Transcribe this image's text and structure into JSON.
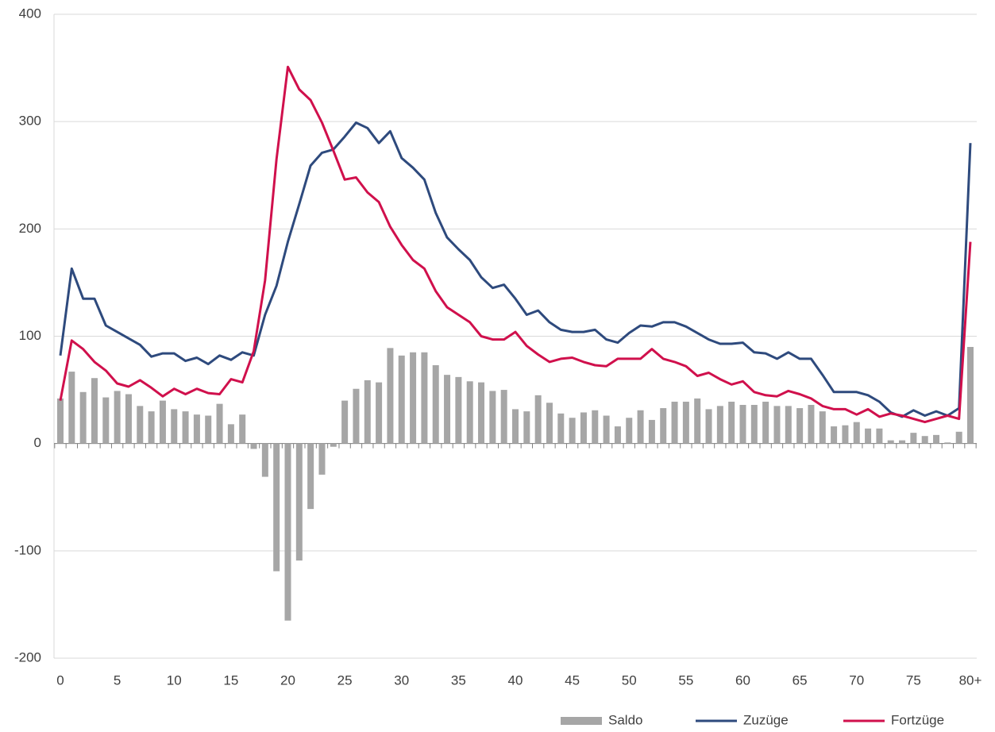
{
  "chart_data": {
    "type": "bar",
    "categories": [
      "0",
      null,
      null,
      null,
      null,
      "5",
      null,
      null,
      null,
      null,
      "10",
      null,
      null,
      null,
      null,
      "15",
      null,
      null,
      null,
      null,
      "20",
      null,
      null,
      null,
      null,
      "25",
      null,
      null,
      null,
      null,
      "30",
      null,
      null,
      null,
      null,
      "35",
      null,
      null,
      null,
      null,
      "40",
      null,
      null,
      null,
      null,
      "45",
      null,
      null,
      null,
      null,
      "50",
      null,
      null,
      null,
      null,
      "55",
      null,
      null,
      null,
      null,
      "60",
      null,
      null,
      null,
      null,
      "65",
      null,
      null,
      null,
      null,
      "70",
      null,
      null,
      null,
      null,
      "75",
      null,
      null,
      null,
      null,
      "80+"
    ],
    "series": [
      {
        "name": "Saldo",
        "type": "bar",
        "color": "#a6a6a6",
        "values": [
          42,
          67,
          48,
          61,
          43,
          49,
          46,
          35,
          30,
          40,
          32,
          30,
          27,
          26,
          37,
          18,
          27,
          -5,
          -31,
          -119,
          -165,
          -109,
          -61,
          -29,
          -3,
          40,
          51,
          59,
          57,
          89,
          82,
          85,
          85,
          73,
          64,
          62,
          58,
          57,
          49,
          50,
          32,
          30,
          45,
          38,
          28,
          24,
          29,
          31,
          26,
          16,
          24,
          31,
          22,
          33,
          39,
          39,
          42,
          32,
          35,
          39,
          36,
          36,
          39,
          35,
          35,
          33,
          36,
          30,
          16,
          17,
          20,
          14,
          14,
          3,
          3,
          10,
          7,
          8,
          1,
          11,
          90
        ]
      },
      {
        "name": "Zuzüge",
        "type": "line",
        "color": "#2e4a7d",
        "values": [
          82,
          163,
          135,
          135,
          110,
          104,
          98,
          92,
          81,
          84,
          84,
          77,
          80,
          74,
          82,
          78,
          85,
          82,
          120,
          147,
          188,
          223,
          259,
          271,
          274,
          286,
          299,
          294,
          280,
          291,
          266,
          257,
          246,
          215,
          192,
          181,
          171,
          155,
          145,
          148,
          135,
          120,
          124,
          113,
          106,
          104,
          104,
          106,
          97,
          94,
          103,
          110,
          109,
          113,
          113,
          109,
          103,
          97,
          93,
          93,
          94,
          85,
          84,
          79,
          85,
          79,
          79,
          64,
          48,
          48,
          48,
          45,
          39,
          29,
          25,
          31,
          26,
          30,
          26,
          33,
          280
        ]
      },
      {
        "name": "Fortzüge",
        "type": "line",
        "color": "#d0104c",
        "values": [
          40,
          96,
          88,
          76,
          68,
          56,
          53,
          59,
          52,
          44,
          51,
          46,
          51,
          47,
          46,
          60,
          57,
          86,
          152,
          265,
          351,
          330,
          320,
          299,
          273,
          246,
          248,
          234,
          225,
          202,
          185,
          171,
          163,
          142,
          127,
          120,
          113,
          100,
          97,
          97,
          104,
          91,
          83,
          76,
          79,
          80,
          76,
          73,
          72,
          79,
          79,
          79,
          88,
          79,
          76,
          72,
          63,
          66,
          60,
          55,
          58,
          48,
          45,
          44,
          49,
          46,
          42,
          35,
          32,
          32,
          27,
          32,
          25,
          28,
          26,
          23,
          20,
          23,
          26,
          23,
          188
        ]
      }
    ],
    "ylim": [
      -200,
      400
    ],
    "yticks": [
      -200,
      -100,
      0,
      100,
      200,
      300,
      400
    ],
    "grid": true,
    "legend": "bottom-right"
  }
}
